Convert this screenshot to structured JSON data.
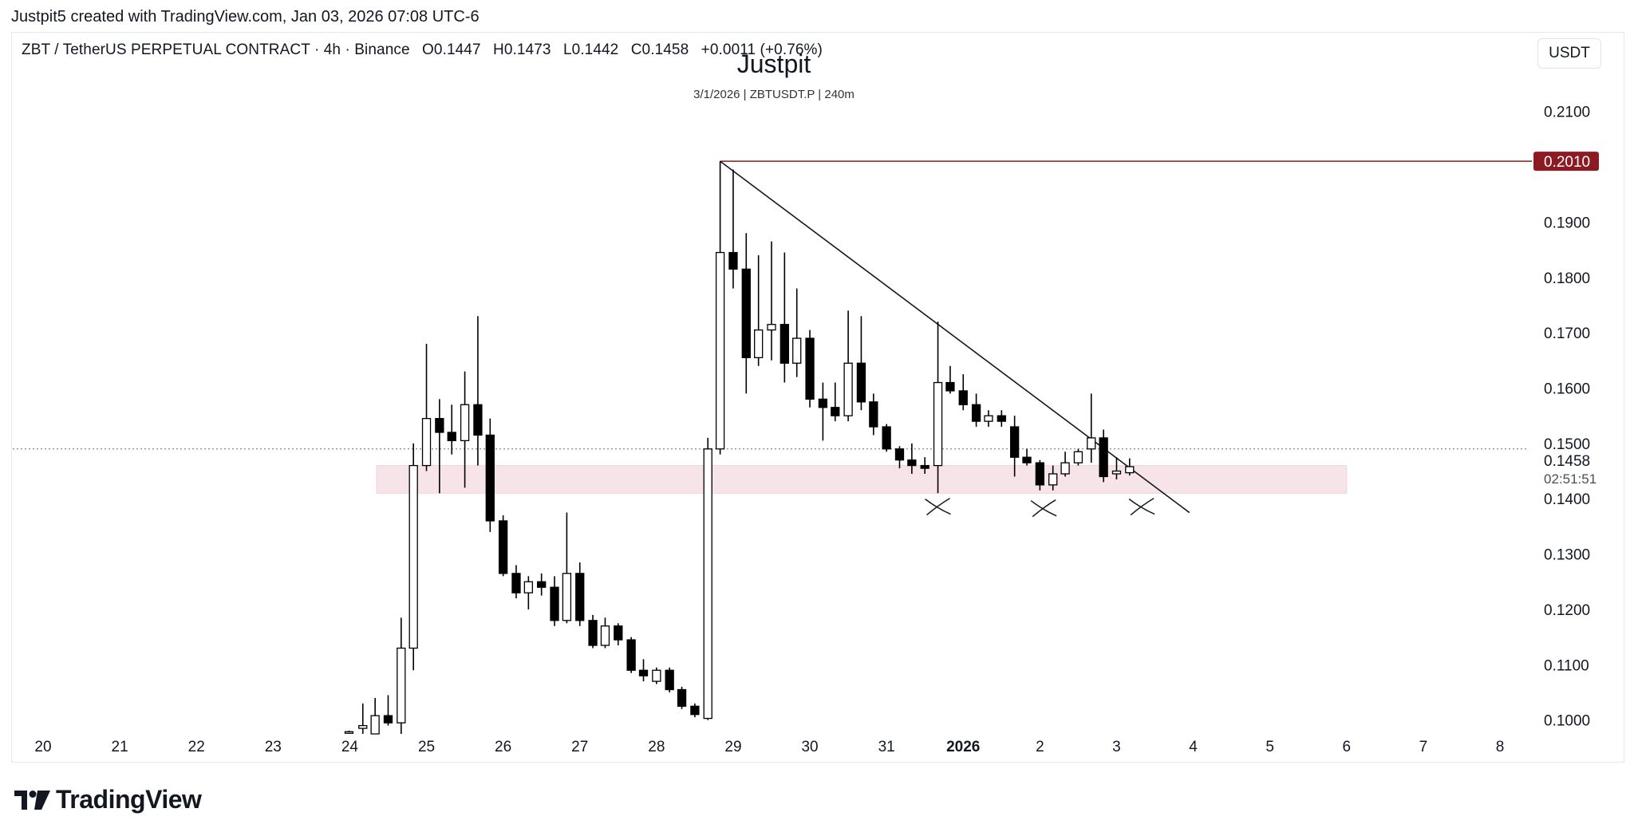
{
  "header": {
    "attribution": "Justpit5 created with TradingView.com, Jan 03, 2026 07:08 UTC-6"
  },
  "legend": {
    "symbol": "ZBT / TetherUS PERPETUAL CONTRACT · 4h · Binance",
    "open": "O0.1447",
    "high": "H0.1473",
    "low": "L0.1442",
    "close": "C0.1458",
    "change": "+0.0011 (+0.76%)"
  },
  "currency_button": "USDT",
  "watermark": {
    "title": "Justpit",
    "subtitle": "3/1/2026 | ZBTUSDT.P | 240m"
  },
  "brand": {
    "name": "TradingView",
    "logo_icon": "tradingview-logo-icon"
  },
  "colors": {
    "up_body": "#ffffff",
    "down_body": "#000000",
    "wick": "#000000",
    "resistance_line": "#8b1a23",
    "zone_fill": "#f6e4e8",
    "grid_text": "#131722"
  },
  "chart_data": {
    "type": "candlestick",
    "timeframe": "4h",
    "y_axis": {
      "ticks": [
        "0.2100",
        "0.1900",
        "0.1800",
        "0.1700",
        "0.1600",
        "0.1500",
        "0.1400",
        "0.1300",
        "0.1200",
        "0.1100",
        "0.1000"
      ],
      "ylim": [
        0.0975,
        0.215
      ],
      "last_price_label": "0.1458",
      "countdown_label": "02:51:51",
      "line_label": "0.2010"
    },
    "x_axis": {
      "ticks": [
        "20",
        "21",
        "22",
        "23",
        "24",
        "25",
        "26",
        "27",
        "28",
        "29",
        "30",
        "31",
        "2026",
        "2",
        "3",
        "4",
        "5",
        "6",
        "7",
        "8"
      ],
      "bold_tick": "2026",
      "xlim": [
        0,
        19
      ]
    },
    "candles": [
      {
        "t": 3.99,
        "o": 0.0978,
        "h": 0.0981,
        "l": 0.0975,
        "c": 0.0979
      },
      {
        "t": 4.17,
        "o": 0.0985,
        "h": 0.103,
        "l": 0.0975,
        "c": 0.099
      },
      {
        "t": 4.33,
        "o": 0.0975,
        "h": 0.104,
        "l": 0.0975,
        "c": 0.1008
      },
      {
        "t": 4.5,
        "o": 0.1008,
        "h": 0.1045,
        "l": 0.099,
        "c": 0.0995
      },
      {
        "t": 4.67,
        "o": 0.0995,
        "h": 0.1185,
        "l": 0.0975,
        "c": 0.113
      },
      {
        "t": 4.83,
        "o": 0.113,
        "h": 0.15,
        "l": 0.109,
        "c": 0.146
      },
      {
        "t": 5.0,
        "o": 0.146,
        "h": 0.168,
        "l": 0.145,
        "c": 0.1545
      },
      {
        "t": 5.17,
        "o": 0.1545,
        "h": 0.158,
        "l": 0.141,
        "c": 0.152
      },
      {
        "t": 5.33,
        "o": 0.152,
        "h": 0.157,
        "l": 0.148,
        "c": 0.1505
      },
      {
        "t": 5.5,
        "o": 0.1505,
        "h": 0.163,
        "l": 0.142,
        "c": 0.157
      },
      {
        "t": 5.67,
        "o": 0.157,
        "h": 0.173,
        "l": 0.146,
        "c": 0.1515
      },
      {
        "t": 5.83,
        "o": 0.1515,
        "h": 0.1545,
        "l": 0.134,
        "c": 0.136
      },
      {
        "t": 6.0,
        "o": 0.136,
        "h": 0.137,
        "l": 0.126,
        "c": 0.1265
      },
      {
        "t": 6.17,
        "o": 0.1265,
        "h": 0.128,
        "l": 0.122,
        "c": 0.123
      },
      {
        "t": 6.33,
        "o": 0.123,
        "h": 0.126,
        "l": 0.12,
        "c": 0.125
      },
      {
        "t": 6.5,
        "o": 0.125,
        "h": 0.1265,
        "l": 0.1225,
        "c": 0.124
      },
      {
        "t": 6.67,
        "o": 0.124,
        "h": 0.126,
        "l": 0.117,
        "c": 0.118
      },
      {
        "t": 6.83,
        "o": 0.118,
        "h": 0.1375,
        "l": 0.1175,
        "c": 0.1265
      },
      {
        "t": 7.0,
        "o": 0.1265,
        "h": 0.1285,
        "l": 0.117,
        "c": 0.118
      },
      {
        "t": 7.17,
        "o": 0.118,
        "h": 0.119,
        "l": 0.113,
        "c": 0.1135
      },
      {
        "t": 7.33,
        "o": 0.1135,
        "h": 0.1185,
        "l": 0.113,
        "c": 0.117
      },
      {
        "t": 7.5,
        "o": 0.117,
        "h": 0.1175,
        "l": 0.1135,
        "c": 0.1145
      },
      {
        "t": 7.67,
        "o": 0.1145,
        "h": 0.115,
        "l": 0.1085,
        "c": 0.109
      },
      {
        "t": 7.83,
        "o": 0.109,
        "h": 0.111,
        "l": 0.107,
        "c": 0.108
      },
      {
        "t": 8.0,
        "o": 0.107,
        "h": 0.1095,
        "l": 0.1065,
        "c": 0.109
      },
      {
        "t": 8.17,
        "o": 0.109,
        "h": 0.1095,
        "l": 0.105,
        "c": 0.1055
      },
      {
        "t": 8.33,
        "o": 0.1055,
        "h": 0.106,
        "l": 0.102,
        "c": 0.1025
      },
      {
        "t": 8.5,
        "o": 0.1025,
        "h": 0.103,
        "l": 0.1005,
        "c": 0.101
      },
      {
        "t": 8.67,
        "o": 0.1003,
        "h": 0.151,
        "l": 0.1,
        "c": 0.149
      },
      {
        "t": 8.83,
        "o": 0.149,
        "h": 0.201,
        "l": 0.148,
        "c": 0.1845
      },
      {
        "t": 9.0,
        "o": 0.1845,
        "h": 0.1995,
        "l": 0.178,
        "c": 0.1815
      },
      {
        "t": 9.17,
        "o": 0.1815,
        "h": 0.188,
        "l": 0.159,
        "c": 0.1655
      },
      {
        "t": 9.33,
        "o": 0.1655,
        "h": 0.184,
        "l": 0.164,
        "c": 0.1705
      },
      {
        "t": 9.5,
        "o": 0.1705,
        "h": 0.1865,
        "l": 0.165,
        "c": 0.1715
      },
      {
        "t": 9.67,
        "o": 0.1715,
        "h": 0.1845,
        "l": 0.161,
        "c": 0.1645
      },
      {
        "t": 9.83,
        "o": 0.1645,
        "h": 0.178,
        "l": 0.162,
        "c": 0.169
      },
      {
        "t": 10.0,
        "o": 0.169,
        "h": 0.1705,
        "l": 0.1565,
        "c": 0.158
      },
      {
        "t": 10.17,
        "o": 0.158,
        "h": 0.161,
        "l": 0.1505,
        "c": 0.1565
      },
      {
        "t": 10.33,
        "o": 0.1565,
        "h": 0.161,
        "l": 0.154,
        "c": 0.155
      },
      {
        "t": 10.5,
        "o": 0.155,
        "h": 0.174,
        "l": 0.154,
        "c": 0.1645
      },
      {
        "t": 10.67,
        "o": 0.1645,
        "h": 0.173,
        "l": 0.156,
        "c": 0.1575
      },
      {
        "t": 10.83,
        "o": 0.1575,
        "h": 0.159,
        "l": 0.1515,
        "c": 0.153
      },
      {
        "t": 11.0,
        "o": 0.153,
        "h": 0.1535,
        "l": 0.1485,
        "c": 0.149
      },
      {
        "t": 11.17,
        "o": 0.149,
        "h": 0.1495,
        "l": 0.1455,
        "c": 0.147
      },
      {
        "t": 11.33,
        "o": 0.147,
        "h": 0.15,
        "l": 0.1445,
        "c": 0.146
      },
      {
        "t": 11.5,
        "o": 0.146,
        "h": 0.1475,
        "l": 0.1445,
        "c": 0.1455
      },
      {
        "t": 11.67,
        "o": 0.146,
        "h": 0.172,
        "l": 0.141,
        "c": 0.161
      },
      {
        "t": 11.83,
        "o": 0.161,
        "h": 0.164,
        "l": 0.159,
        "c": 0.1595
      },
      {
        "t": 12.0,
        "o": 0.1595,
        "h": 0.1625,
        "l": 0.156,
        "c": 0.157
      },
      {
        "t": 12.17,
        "o": 0.157,
        "h": 0.159,
        "l": 0.153,
        "c": 0.154
      },
      {
        "t": 12.33,
        "o": 0.154,
        "h": 0.156,
        "l": 0.153,
        "c": 0.155
      },
      {
        "t": 12.5,
        "o": 0.155,
        "h": 0.156,
        "l": 0.153,
        "c": 0.154
      },
      {
        "t": 12.67,
        "o": 0.153,
        "h": 0.155,
        "l": 0.144,
        "c": 0.1475
      },
      {
        "t": 12.83,
        "o": 0.1475,
        "h": 0.149,
        "l": 0.146,
        "c": 0.1465
      },
      {
        "t": 13.0,
        "o": 0.1465,
        "h": 0.147,
        "l": 0.1415,
        "c": 0.1425
      },
      {
        "t": 13.17,
        "o": 0.1425,
        "h": 0.146,
        "l": 0.1415,
        "c": 0.1445
      },
      {
        "t": 13.33,
        "o": 0.1445,
        "h": 0.1485,
        "l": 0.144,
        "c": 0.1465
      },
      {
        "t": 13.5,
        "o": 0.1465,
        "h": 0.149,
        "l": 0.146,
        "c": 0.1485
      },
      {
        "t": 13.67,
        "o": 0.149,
        "h": 0.159,
        "l": 0.1465,
        "c": 0.151
      },
      {
        "t": 13.83,
        "o": 0.151,
        "h": 0.1525,
        "l": 0.143,
        "c": 0.144
      },
      {
        "t": 14.0,
        "o": 0.1445,
        "h": 0.1475,
        "l": 0.1435,
        "c": 0.145
      },
      {
        "t": 14.17,
        "o": 0.1447,
        "h": 0.1473,
        "l": 0.1442,
        "c": 0.1458
      }
    ],
    "series": [
      {
        "type": "horizontal_line",
        "price": 0.201,
        "x_start": 8.83,
        "x_end": 19
      },
      {
        "type": "trend_line",
        "points": [
          [
            8.83,
            0.201
          ],
          [
            14.95,
            0.1375
          ]
        ]
      },
      {
        "type": "zone",
        "x_start": 4.35,
        "x_end": 17.0,
        "y_low": 0.141,
        "y_high": 0.146
      },
      {
        "type": "crosshair_hline",
        "price": 0.149
      },
      {
        "type": "annotation",
        "marker": "x",
        "points": [
          [
            11.67,
            0.1385
          ],
          [
            13.05,
            0.1382
          ],
          [
            14.33,
            0.1385
          ]
        ]
      }
    ]
  }
}
